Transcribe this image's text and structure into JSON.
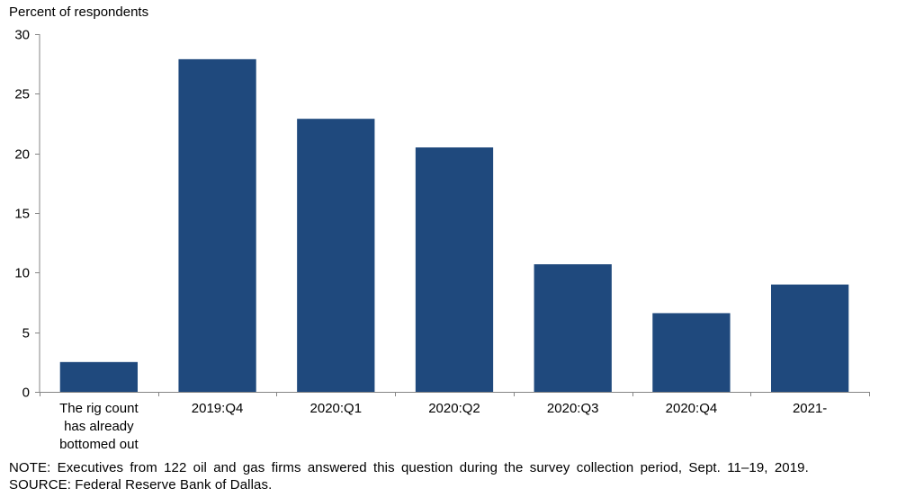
{
  "chart_data": {
    "type": "bar",
    "ylabel": "Percent of respondents",
    "xlabel": "",
    "ylim": [
      0,
      30
    ],
    "yticks": [
      0,
      5,
      10,
      15,
      20,
      25,
      30
    ],
    "grid": false,
    "categories": [
      [
        "The rig count",
        "has already",
        "bottomed out"
      ],
      [
        "2019:Q4"
      ],
      [
        "2020:Q1"
      ],
      [
        "2020:Q2"
      ],
      [
        "2020:Q3"
      ],
      [
        "2020:Q4"
      ],
      [
        "2021-"
      ]
    ],
    "values": [
      2.5,
      27.9,
      22.9,
      20.5,
      10.7,
      6.6,
      9.0
    ],
    "bar_color": "#1f497d"
  },
  "notes": {
    "note": "NOTE: Executives from 122 oil and gas firms answered this question during the survey collection period, Sept. 11–19, 2019.",
    "source": "SOURCE: Federal Reserve Bank of Dallas."
  }
}
